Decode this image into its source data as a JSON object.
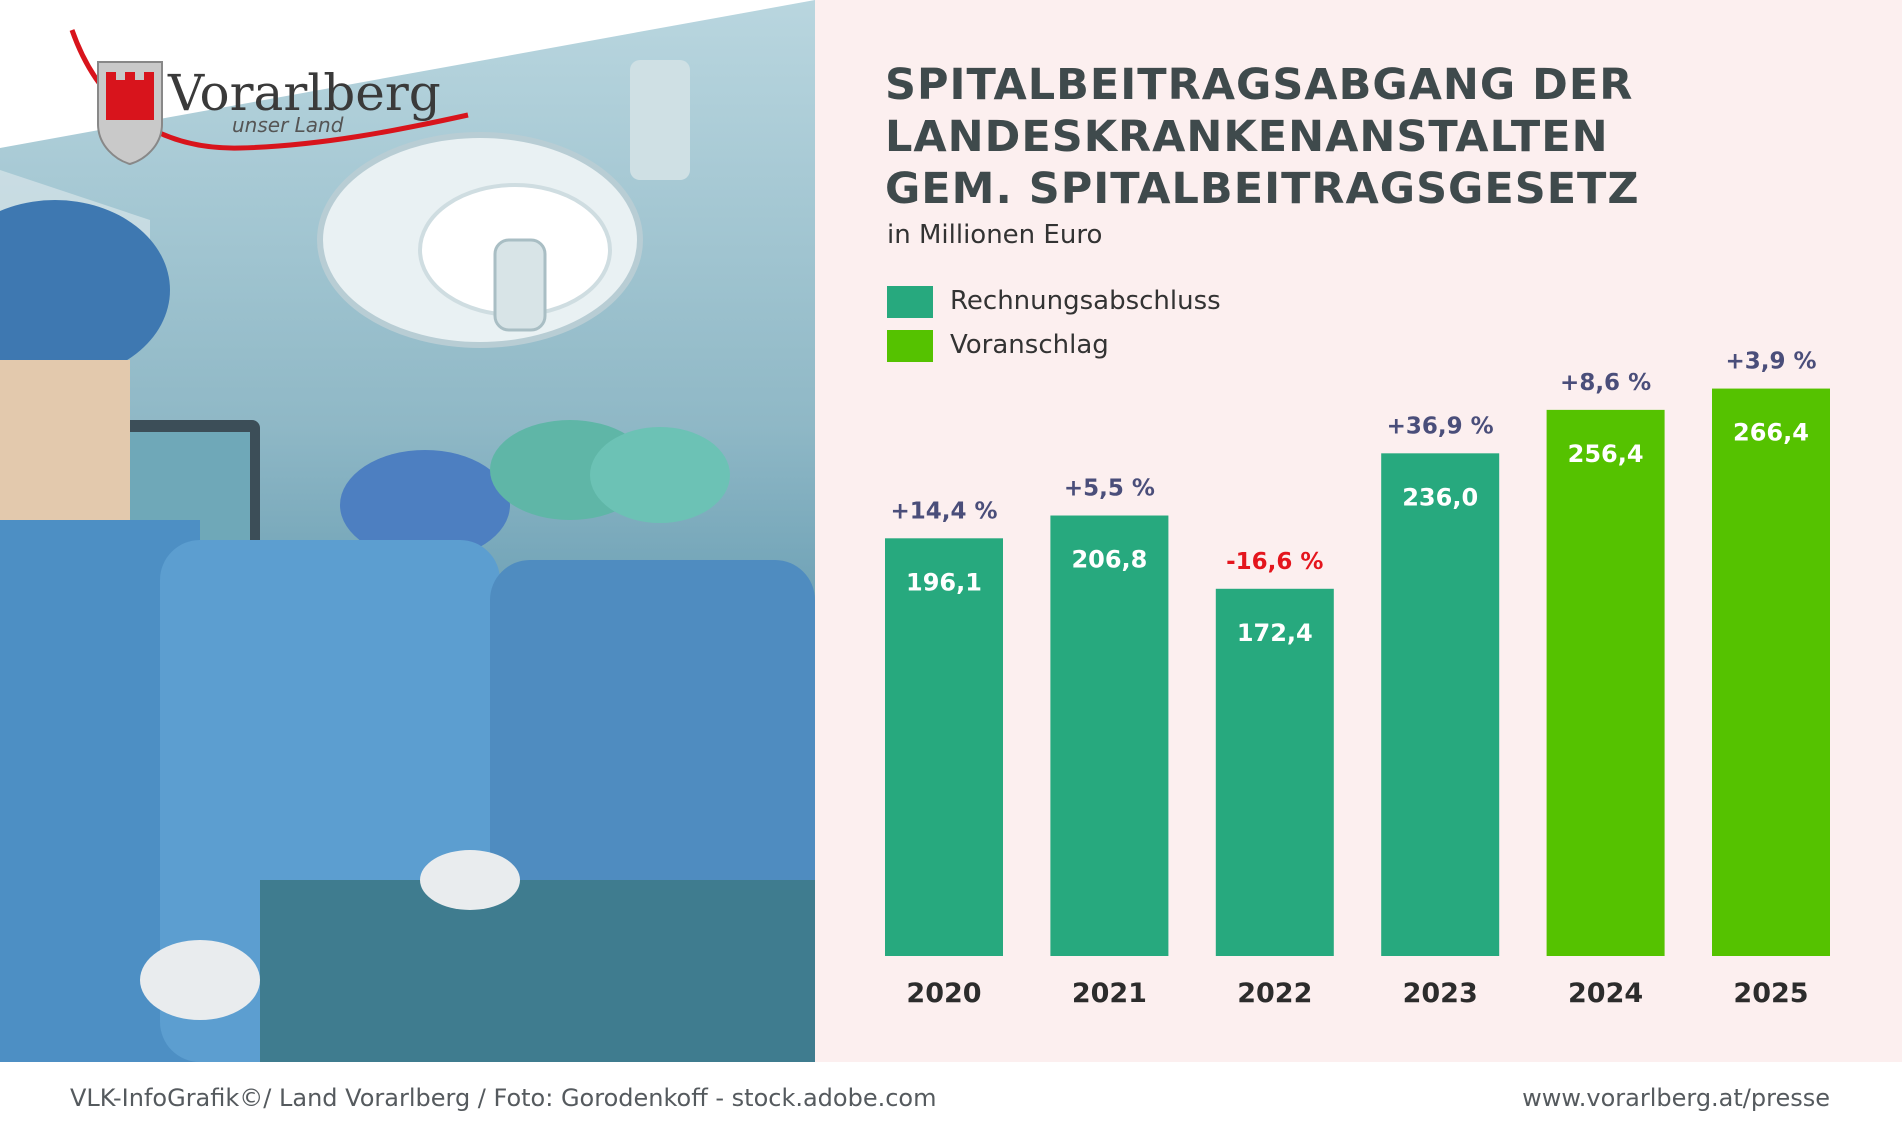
{
  "header": {
    "title_lines": [
      "SPITALBEITRAGSABGANG DER",
      "LANDESKRANKENANSTALTEN",
      "GEM. SPITALBEITRAGSGESETZ"
    ],
    "subtitle": "in Millionen Euro"
  },
  "logo": {
    "name": "Vorarlberg",
    "tagline": "unser Land"
  },
  "legend": [
    {
      "label": "Rechnungsabschluss",
      "color": "#27a97e"
    },
    {
      "label": "Voranschlag",
      "color": "#55c200"
    }
  ],
  "chart_data": {
    "type": "bar",
    "title": "SPITALBEITRAGSABGANG DER LANDESKRANKENANSTALTEN GEM. SPITALBEITRAGSGESETZ",
    "ylabel": "in Millionen Euro",
    "xlabel": "",
    "ylim": [
      0,
      300
    ],
    "categories": [
      "2020",
      "2021",
      "2022",
      "2023",
      "2024",
      "2025"
    ],
    "values": [
      196.1,
      206.8,
      172.4,
      236.0,
      256.4,
      266.4
    ],
    "value_labels": [
      "196,1",
      "206,8",
      "172,4",
      "236,0",
      "256,4",
      "266,4"
    ],
    "changes": [
      "+14,4 %",
      "+5,5 %",
      "-16,6 %",
      "+36,9 %",
      "+8,6 %",
      "+3,9 %"
    ],
    "change_colors": [
      "#4a4e7a",
      "#4a4e7a",
      "#e4151d",
      "#4a4e7a",
      "#4a4e7a",
      "#4a4e7a"
    ],
    "series_type": [
      "Rechnungsabschluss",
      "Rechnungsabschluss",
      "Rechnungsabschluss",
      "Rechnungsabschluss",
      "Voranschlag",
      "Voranschlag"
    ],
    "grid": false,
    "legend_position": "top-left"
  },
  "footer": {
    "credit": "VLK-InfoGrafik©/ Land Vorarlberg / Foto: Gorodenkoff - stock.adobe.com",
    "website": "www.vorarlberg.at/presse"
  }
}
